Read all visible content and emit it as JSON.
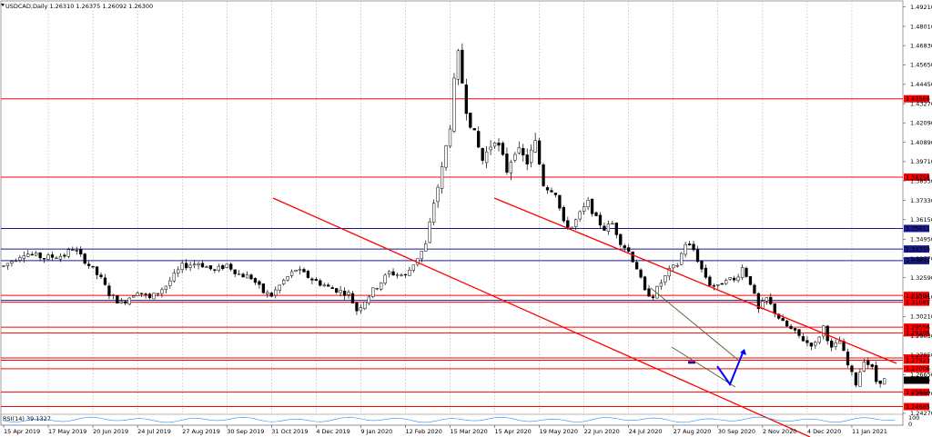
{
  "chart_data": {
    "type": "candlestick",
    "title": "USDCAD,Daily  1.26310 1.26375 1.26092 1.26300",
    "ylim": [
      1.2421,
      1.4957
    ],
    "y_ticks": [
      "1.49210",
      "1.48010",
      "1.46830",
      "1.45650",
      "1.44450",
      "1.43270",
      "1.42090",
      "1.40890",
      "1.39710",
      "1.38530",
      "1.37330",
      "1.36150",
      "1.34950",
      "1.33770",
      "1.32590",
      "1.31410",
      "1.30210",
      "1.29030",
      "1.27850",
      "1.26650",
      "1.25470",
      "1.24270"
    ],
    "x_ticks": [
      "15 Apr 2019",
      "17 May 2019",
      "20 Jun 2019",
      "24 Jul 2019",
      "27 Aug 2019",
      "30 Sep 2019",
      "31 Oct 2019",
      "4 Dec 2019",
      "9 Jan 2020",
      "12 Feb 2020",
      "15 Mar 2020",
      "15 Apr 2020",
      "19 May 2020",
      "22 Jun 2020",
      "24 Jul 2020",
      "27 Aug 2020",
      "30 Sep 2020",
      "2 Nov 2020",
      "4 Dec 2020",
      "11 Jan 2021"
    ],
    "price_path": [
      [
        0,
        1.333
      ],
      [
        5,
        1.3412
      ],
      [
        10,
        1.338
      ],
      [
        15,
        1.3397
      ],
      [
        17,
        1.344
      ],
      [
        20,
        1.3365
      ],
      [
        24,
        1.325
      ],
      [
        26,
        1.316
      ],
      [
        29,
        1.31
      ],
      [
        33,
        1.318
      ],
      [
        36,
        1.313
      ],
      [
        40,
        1.321
      ],
      [
        44,
        1.333
      ],
      [
        48,
        1.335
      ],
      [
        52,
        1.33
      ],
      [
        55,
        1.334
      ],
      [
        58,
        1.328
      ],
      [
        61,
        1.326
      ],
      [
        64,
        1.317
      ],
      [
        66,
        1.315
      ],
      [
        69,
        1.324
      ],
      [
        72,
        1.331
      ],
      [
        76,
        1.325
      ],
      [
        80,
        1.32
      ],
      [
        85,
        1.316
      ],
      [
        87,
        1.306
      ],
      [
        91,
        1.318
      ],
      [
        95,
        1.329
      ],
      [
        99,
        1.327
      ],
      [
        103,
        1.342
      ],
      [
        104,
        1.346
      ],
      [
        106,
        1.372
      ],
      [
        108,
        1.392
      ],
      [
        110,
        1.42
      ],
      [
        111,
        1.445
      ],
      [
        112,
        1.462
      ],
      [
        114,
        1.43
      ],
      [
        116,
        1.413
      ],
      [
        118,
        1.398
      ],
      [
        121,
        1.412
      ],
      [
        124,
        1.392
      ],
      [
        126,
        1.405
      ],
      [
        129,
        1.397
      ],
      [
        131,
        1.408
      ],
      [
        133,
        1.384
      ],
      [
        136,
        1.378
      ],
      [
        138,
        1.359
      ],
      [
        140,
        1.357
      ],
      [
        142,
        1.365
      ],
      [
        144,
        1.372
      ],
      [
        146,
        1.362
      ],
      [
        148,
        1.356
      ],
      [
        150,
        1.359
      ],
      [
        152,
        1.348
      ],
      [
        154,
        1.342
      ],
      [
        156,
        1.332
      ],
      [
        158,
        1.317
      ],
      [
        160,
        1.315
      ],
      [
        162,
        1.323
      ],
      [
        164,
        1.33
      ],
      [
        166,
        1.334
      ],
      [
        168,
        1.347
      ],
      [
        170,
        1.343
      ],
      [
        172,
        1.331
      ],
      [
        174,
        1.322
      ],
      [
        176,
        1.32
      ],
      [
        178,
        1.326
      ],
      [
        180,
        1.324
      ],
      [
        182,
        1.332
      ],
      [
        184,
        1.323
      ],
      [
        186,
        1.306
      ],
      [
        188,
        1.313
      ],
      [
        190,
        1.305
      ],
      [
        192,
        1.298
      ],
      [
        195,
        1.292
      ],
      [
        198,
        1.286
      ],
      [
        200,
        1.285
      ],
      [
        202,
        1.296
      ],
      [
        204,
        1.282
      ],
      [
        206,
        1.287
      ],
      [
        208,
        1.272
      ],
      [
        210,
        1.261
      ],
      [
        212,
        1.276
      ],
      [
        214,
        1.27
      ],
      [
        215,
        1.2624
      ],
      [
        217,
        1.263
      ]
    ],
    "red_levels": [
      "1.43566",
      "1.38758",
      "1.31504",
      "1.31085",
      "1.29556",
      "1.29206",
      "1.27664",
      "1.27523",
      "1.27006",
      "1.25566",
      "1.24685"
    ],
    "blue_levels": [
      "1.35611",
      "1.34350",
      "1.33634",
      "1.31200"
    ],
    "current_price": "1.26300",
    "indicator": {
      "label": "RSI(14) 39.1327",
      "scale": [
        "100",
        "0"
      ]
    },
    "colors": {
      "up": "#000000",
      "down": "#000000",
      "level_red": "#ff0000",
      "level_blue": "#1a1a8c",
      "channel": "#ff0000",
      "wedge": "#556b2f",
      "arrow": "#0000ff"
    }
  }
}
